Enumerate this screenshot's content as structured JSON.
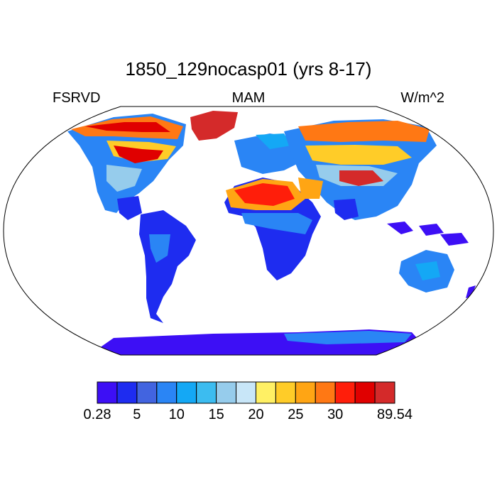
{
  "title": "1850_129nocasp01 (yrs 8-17)",
  "left_label": "FSRVD",
  "center_label": "MAM",
  "right_label": "W/m^2",
  "colorbar": {
    "colors": [
      "#3d0ff5",
      "#1e2cf0",
      "#4264e0",
      "#2a85f5",
      "#14a8f5",
      "#3cbcf0",
      "#96ccec",
      "#c8e6f8",
      "#fff064",
      "#ffcc28",
      "#ffa514",
      "#ff7814",
      "#ff1e0a",
      "#e00000",
      "#d42a2a"
    ],
    "labels": [
      "0.28",
      "5",
      "10",
      "15",
      "20",
      "25",
      "30",
      "89.54"
    ]
  }
}
